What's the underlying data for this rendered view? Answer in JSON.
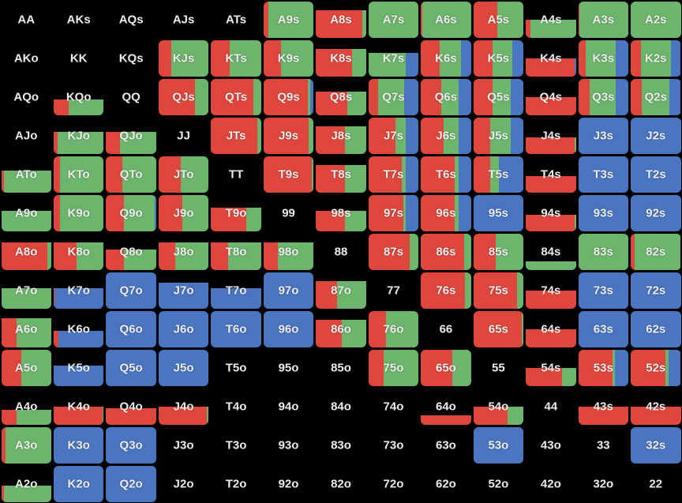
{
  "colors": {
    "raise": "#e0473c",
    "call": "#6cb56c",
    "fold": "#4a75c1",
    "empty": "#000000",
    "text": "#ececec"
  },
  "legend_note": "cell mix = [fill_height, raise, call, fold] fractions",
  "grid": {
    "rows": [
      [
        [
          "AA",
          0,
          0,
          0,
          0
        ],
        [
          "AKs",
          0,
          0,
          0,
          0
        ],
        [
          "AQs",
          0,
          0,
          0,
          0
        ],
        [
          "AJs",
          0,
          0,
          0,
          0
        ],
        [
          "ATs",
          0,
          0,
          0,
          0
        ],
        [
          "A9s",
          1,
          0.1,
          0.9,
          0
        ],
        [
          "A8s",
          0.75,
          0.92,
          0.08,
          0
        ],
        [
          "A7s",
          1,
          0,
          1,
          0
        ],
        [
          "A6s",
          1,
          0.03,
          0.97,
          0
        ],
        [
          "A5s",
          1,
          0.48,
          0.52,
          0
        ],
        [
          "A4s",
          0.5,
          0.1,
          0.9,
          0
        ],
        [
          "A3s",
          1,
          0.02,
          0.98,
          0
        ],
        [
          "A2s",
          1,
          0,
          1,
          0
        ]
      ],
      [
        [
          "AKo",
          0,
          0,
          0,
          0
        ],
        [
          "KK",
          0,
          0,
          0,
          0
        ],
        [
          "KQs",
          0,
          0,
          0,
          0
        ],
        [
          "KJs",
          1,
          0.25,
          0.75,
          0
        ],
        [
          "KTs",
          1,
          0.38,
          0.62,
          0
        ],
        [
          "K9s",
          1,
          0.35,
          0.65,
          0
        ],
        [
          "K8s",
          0.75,
          0.72,
          0.28,
          0
        ],
        [
          "K7s",
          0.65,
          0,
          0.75,
          0.25
        ],
        [
          "K6s",
          1,
          0.38,
          0.42,
          0.2
        ],
        [
          "K5s",
          1,
          0.38,
          0.4,
          0.22
        ],
        [
          "K4s",
          0.5,
          0.98,
          0,
          0.02
        ],
        [
          "K3s",
          1,
          0.15,
          0.6,
          0.25
        ],
        [
          "K2s",
          1,
          0.2,
          0.6,
          0.2
        ]
      ],
      [
        [
          "AQo",
          0,
          0,
          0,
          0
        ],
        [
          "KQo",
          0.42,
          0.3,
          0.7,
          0
        ],
        [
          "QQ",
          0,
          0,
          0,
          0
        ],
        [
          "QJs",
          1,
          0.72,
          0.28,
          0
        ],
        [
          "QTs",
          1,
          0.85,
          0.15,
          0
        ],
        [
          "Q9s",
          1,
          0.88,
          0.06,
          0.06
        ],
        [
          "Q8s",
          0.65,
          0.63,
          0.37,
          0
        ],
        [
          "Q7s",
          1,
          0.2,
          0.52,
          0.28
        ],
        [
          "Q6s",
          1,
          0.4,
          0.35,
          0.25
        ],
        [
          "Q5s",
          1,
          0.38,
          0.36,
          0.26
        ],
        [
          "Q4s",
          0.5,
          1,
          0,
          0
        ],
        [
          "Q3s",
          1,
          0.22,
          0.53,
          0.25
        ],
        [
          "Q2s",
          1,
          0.22,
          0.55,
          0.23
        ]
      ],
      [
        [
          "AJo",
          0,
          0,
          0,
          0
        ],
        [
          "KJo",
          0.6,
          0.08,
          0.92,
          0
        ],
        [
          "QJo",
          0.6,
          0.28,
          0.72,
          0
        ],
        [
          "JJ",
          0,
          0,
          0,
          0
        ],
        [
          "JTs",
          1,
          0.92,
          0.08,
          0
        ],
        [
          "J9s",
          1,
          0.9,
          0.1,
          0
        ],
        [
          "J8s",
          0.75,
          0.58,
          0.42,
          0
        ],
        [
          "J7s",
          1,
          0.54,
          0.21,
          0.25
        ],
        [
          "J6s",
          1,
          0.46,
          0.29,
          0.25
        ],
        [
          "J5s",
          1,
          0.33,
          0.42,
          0.25
        ],
        [
          "J4s",
          0.45,
          0.98,
          0.02,
          0
        ],
        [
          "J3s",
          1,
          0,
          0.01,
          0.99
        ],
        [
          "J2s",
          1,
          0,
          0,
          1
        ]
      ],
      [
        [
          "ATo",
          0.6,
          0.05,
          0.95,
          0
        ],
        [
          "KTo",
          1,
          0.12,
          0.88,
          0
        ],
        [
          "QTo",
          1,
          0.33,
          0.67,
          0
        ],
        [
          "JTo",
          1,
          0.45,
          0.55,
          0
        ],
        [
          "TT",
          0,
          0,
          0,
          0
        ],
        [
          "T9s",
          1,
          0.97,
          0.03,
          0
        ],
        [
          "T8s",
          0.75,
          0.58,
          0.42,
          0
        ],
        [
          "T7s",
          1,
          0.67,
          0.08,
          0.25
        ],
        [
          "T6s",
          1,
          0.67,
          0.08,
          0.25
        ],
        [
          "T5s",
          1,
          0.33,
          0.18,
          0.49
        ],
        [
          "T4s",
          0.45,
          1,
          0,
          0
        ],
        [
          "T3s",
          1,
          0,
          0,
          1
        ],
        [
          "T2s",
          1,
          0,
          0,
          1
        ]
      ],
      [
        [
          "A9o",
          0.55,
          0,
          1,
          0
        ],
        [
          "K9o",
          1,
          0.12,
          0.88,
          0
        ],
        [
          "Q9o",
          1,
          0.35,
          0.62,
          0.03
        ],
        [
          "J9o",
          1,
          0.48,
          0.52,
          0
        ],
        [
          "T9o",
          0.65,
          0.7,
          0.3,
          0
        ],
        [
          "99",
          0,
          0,
          0,
          0
        ],
        [
          "98s",
          0.55,
          0.58,
          0.42,
          0
        ],
        [
          "97s",
          1,
          0.7,
          0.05,
          0.25
        ],
        [
          "96s",
          1,
          0.68,
          0.07,
          0.25
        ],
        [
          "95s",
          1,
          0,
          0,
          1
        ],
        [
          "94s",
          0.45,
          0.97,
          0.03,
          0
        ],
        [
          "93s",
          1,
          0,
          0,
          1
        ],
        [
          "92s",
          1,
          0,
          0,
          1
        ]
      ],
      [
        [
          "A8o",
          0.75,
          0.92,
          0.08,
          0
        ],
        [
          "K8o",
          0.75,
          0.45,
          0.55,
          0
        ],
        [
          "Q8o",
          0.55,
          0.35,
          0.65,
          0
        ],
        [
          "J8o",
          0.75,
          0.33,
          0.67,
          0
        ],
        [
          "T8o",
          0.75,
          0.34,
          0.66,
          0
        ],
        [
          "98o",
          0.75,
          0.28,
          0.72,
          0
        ],
        [
          "88",
          0,
          0,
          0,
          0
        ],
        [
          "87s",
          1,
          0.82,
          0.18,
          0
        ],
        [
          "86s",
          1,
          0.86,
          0.14,
          0
        ],
        [
          "85s",
          1,
          0.44,
          0.56,
          0
        ],
        [
          "84s",
          0.22,
          0,
          1,
          0
        ],
        [
          "83s",
          1,
          0,
          1,
          0
        ],
        [
          "82s",
          1,
          0.08,
          0.92,
          0
        ]
      ],
      [
        [
          "A7o",
          0.55,
          0,
          1,
          0
        ],
        [
          "K7o",
          0.55,
          0.02,
          0,
          0.98
        ],
        [
          "Q7o",
          1,
          0,
          0,
          1
        ],
        [
          "J7o",
          0.7,
          0,
          0,
          1
        ],
        [
          "T7o",
          0.55,
          0,
          0,
          1
        ],
        [
          "97o",
          1,
          0,
          0,
          1
        ],
        [
          "87o",
          0.75,
          0.42,
          0.58,
          0
        ],
        [
          "77",
          0,
          0,
          0,
          0
        ],
        [
          "76s",
          1,
          0.88,
          0.12,
          0
        ],
        [
          "75s",
          1,
          0.88,
          0.12,
          0
        ],
        [
          "74s",
          0.5,
          1,
          0,
          0
        ],
        [
          "73s",
          1,
          0,
          0,
          1
        ],
        [
          "72s",
          1,
          0,
          0,
          1
        ]
      ],
      [
        [
          "A6o",
          0.8,
          0.3,
          0.7,
          0
        ],
        [
          "K6o",
          0.45,
          0.1,
          0,
          0.9
        ],
        [
          "Q6o",
          1,
          0,
          0,
          1
        ],
        [
          "J6o",
          1,
          0,
          0,
          1
        ],
        [
          "T6o",
          1,
          0,
          0,
          1
        ],
        [
          "96o",
          1,
          0,
          0,
          1
        ],
        [
          "86o",
          0.75,
          0.52,
          0.48,
          0
        ],
        [
          "76o",
          1,
          0.35,
          0.65,
          0
        ],
        [
          "66",
          0,
          0,
          0,
          0
        ],
        [
          "65s",
          1,
          0.97,
          0.03,
          0
        ],
        [
          "64s",
          0.5,
          1,
          0,
          0
        ],
        [
          "63s",
          1,
          0,
          0,
          1
        ],
        [
          "62s",
          1,
          0,
          0,
          1
        ]
      ],
      [
        [
          "A5o",
          1,
          0.4,
          0.6,
          0
        ],
        [
          "K5o",
          0.55,
          0,
          0,
          1
        ],
        [
          "Q5o",
          1,
          0,
          0,
          1
        ],
        [
          "J5o",
          1,
          0,
          0,
          1
        ],
        [
          "T5o",
          0,
          0,
          0,
          0
        ],
        [
          "95o",
          0,
          0,
          0,
          0
        ],
        [
          "85o",
          0,
          0,
          0,
          0
        ],
        [
          "75o",
          1,
          0.3,
          0.7,
          0
        ],
        [
          "65o",
          1,
          0.62,
          0.38,
          0
        ],
        [
          "55",
          0,
          0,
          0,
          0
        ],
        [
          "54s",
          0.5,
          0.73,
          0.27,
          0
        ],
        [
          "53s",
          1,
          0.68,
          0.05,
          0.27
        ],
        [
          "52s",
          1,
          0.7,
          0.05,
          0.25
        ]
      ],
      [
        [
          "A4o",
          0.4,
          0.3,
          0.7,
          0
        ],
        [
          "K4o",
          0.5,
          0.98,
          0.02,
          0
        ],
        [
          "Q4o",
          0.45,
          1,
          0,
          0
        ],
        [
          "J4o",
          0.5,
          0.97,
          0.03,
          0
        ],
        [
          "T4o",
          0,
          0,
          0,
          0
        ],
        [
          "94o",
          0,
          0,
          0,
          0
        ],
        [
          "84o",
          0,
          0,
          0,
          0
        ],
        [
          "74o",
          0,
          0,
          0,
          0
        ],
        [
          "64o",
          0.25,
          1,
          0,
          0
        ],
        [
          "54o",
          0.5,
          0.68,
          0.32,
          0
        ],
        [
          "44",
          0,
          0,
          0,
          0
        ],
        [
          "43s",
          0.5,
          1,
          0,
          0
        ],
        [
          "42s",
          0.5,
          1,
          0,
          0
        ]
      ],
      [
        [
          "A3o",
          1,
          0.08,
          0.92,
          0
        ],
        [
          "K3o",
          1,
          0,
          0,
          1
        ],
        [
          "Q3o",
          1,
          0,
          0,
          1
        ],
        [
          "J3o",
          0,
          0,
          0,
          0
        ],
        [
          "T3o",
          0,
          0,
          0,
          0
        ],
        [
          "93o",
          0,
          0,
          0,
          0
        ],
        [
          "83o",
          0,
          0,
          0,
          0
        ],
        [
          "73o",
          0,
          0,
          0,
          0
        ],
        [
          "63o",
          0,
          0,
          0,
          0
        ],
        [
          "53o",
          1,
          0,
          0,
          1
        ],
        [
          "43o",
          0,
          0,
          0,
          0
        ],
        [
          "33",
          0,
          0,
          0,
          0
        ],
        [
          "32s",
          1,
          0,
          0,
          1
        ]
      ],
      [
        [
          "A2o",
          0.45,
          0.05,
          0.95,
          0
        ],
        [
          "K2o",
          1,
          0,
          0,
          1
        ],
        [
          "Q2o",
          1,
          0,
          0,
          1
        ],
        [
          "J2o",
          0,
          0,
          0,
          0
        ],
        [
          "T2o",
          0,
          0,
          0,
          0
        ],
        [
          "92o",
          0,
          0,
          0,
          0
        ],
        [
          "82o",
          0,
          0,
          0,
          0
        ],
        [
          "72o",
          0,
          0,
          0,
          0
        ],
        [
          "62o",
          0,
          0,
          0,
          0
        ],
        [
          "52o",
          0,
          0,
          0,
          0
        ],
        [
          "42o",
          0,
          0,
          0,
          0
        ],
        [
          "32o",
          0,
          0,
          0,
          0
        ],
        [
          "22",
          0,
          0,
          0,
          0
        ]
      ]
    ]
  }
}
